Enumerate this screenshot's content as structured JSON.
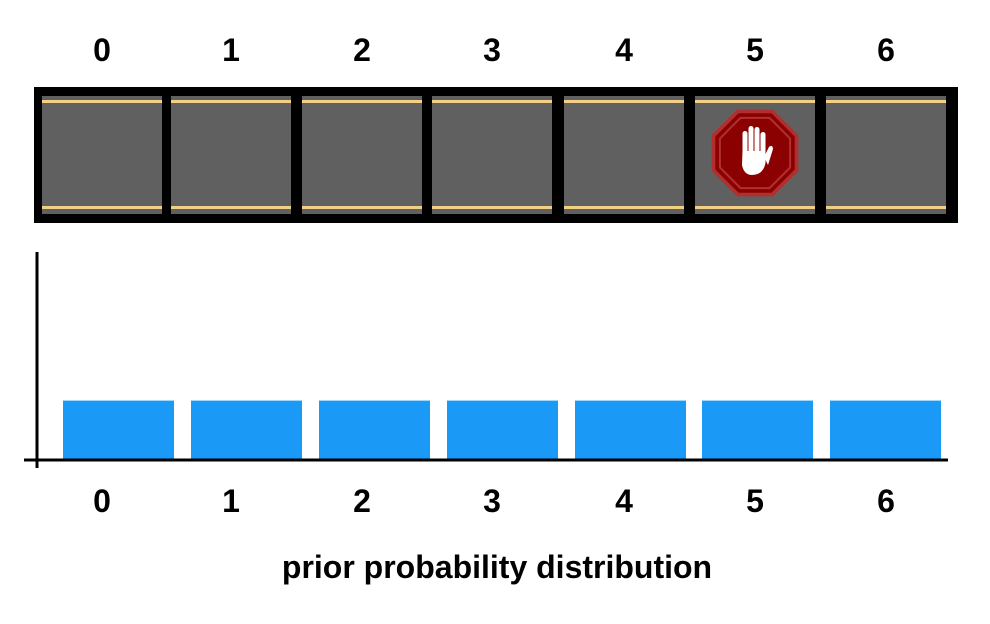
{
  "road": {
    "cell_labels": [
      "0",
      "1",
      "2",
      "3",
      "4",
      "5",
      "6"
    ],
    "stop_sign_cell": 5,
    "stop_sign_icon": "stop-hand-icon",
    "colors": {
      "frame": "#000000",
      "cell": "#606060",
      "lane_line": "#f3cf86",
      "stop_sign": "#8b0000",
      "stop_sign_rim": "#b03030",
      "hand": "#ffffff"
    }
  },
  "chart_data": {
    "type": "bar",
    "categories": [
      "0",
      "1",
      "2",
      "3",
      "4",
      "5",
      "6"
    ],
    "values": [
      0.142857,
      0.142857,
      0.142857,
      0.142857,
      0.142857,
      0.142857,
      0.142857
    ],
    "title": "",
    "xlabel": "prior probability distribution",
    "ylabel": "",
    "ylim": [
      0,
      0.5
    ],
    "grid": false,
    "bar_color": "#1a99f6"
  }
}
